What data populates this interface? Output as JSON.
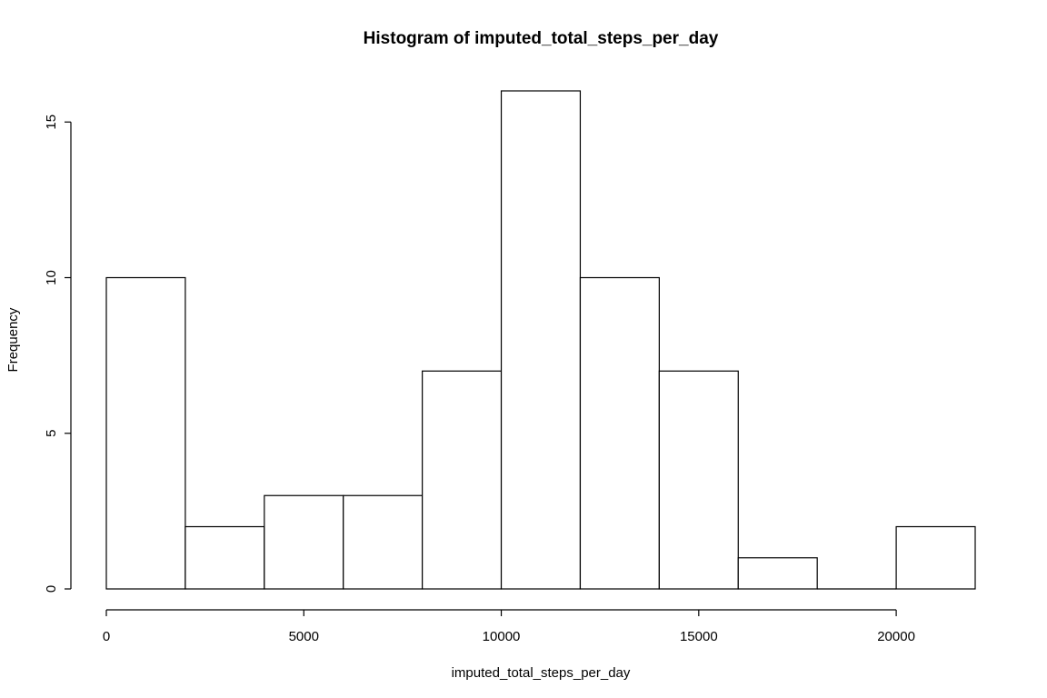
{
  "chart_data": {
    "type": "bar",
    "title": "Histogram of imputed_total_steps_per_day",
    "xlabel": "imputed_total_steps_per_day",
    "ylabel": "Frequency",
    "bins": [
      {
        "start": 0,
        "end": 2000,
        "count": 10
      },
      {
        "start": 2000,
        "end": 4000,
        "count": 2
      },
      {
        "start": 4000,
        "end": 6000,
        "count": 3
      },
      {
        "start": 6000,
        "end": 8000,
        "count": 3
      },
      {
        "start": 8000,
        "end": 10000,
        "count": 7
      },
      {
        "start": 10000,
        "end": 12000,
        "count": 16
      },
      {
        "start": 12000,
        "end": 14000,
        "count": 10
      },
      {
        "start": 14000,
        "end": 16000,
        "count": 7
      },
      {
        "start": 16000,
        "end": 18000,
        "count": 1
      },
      {
        "start": 18000,
        "end": 20000,
        "count": 0
      },
      {
        "start": 20000,
        "end": 22000,
        "count": 2
      }
    ],
    "xticks": [
      0,
      5000,
      10000,
      15000,
      20000
    ],
    "yticks": [
      0,
      5,
      10,
      15
    ],
    "xlim": [
      0,
      22000
    ],
    "ylim": [
      0,
      16
    ],
    "grid": false,
    "bar_fill": "#ffffff",
    "bar_stroke": "#000000"
  }
}
